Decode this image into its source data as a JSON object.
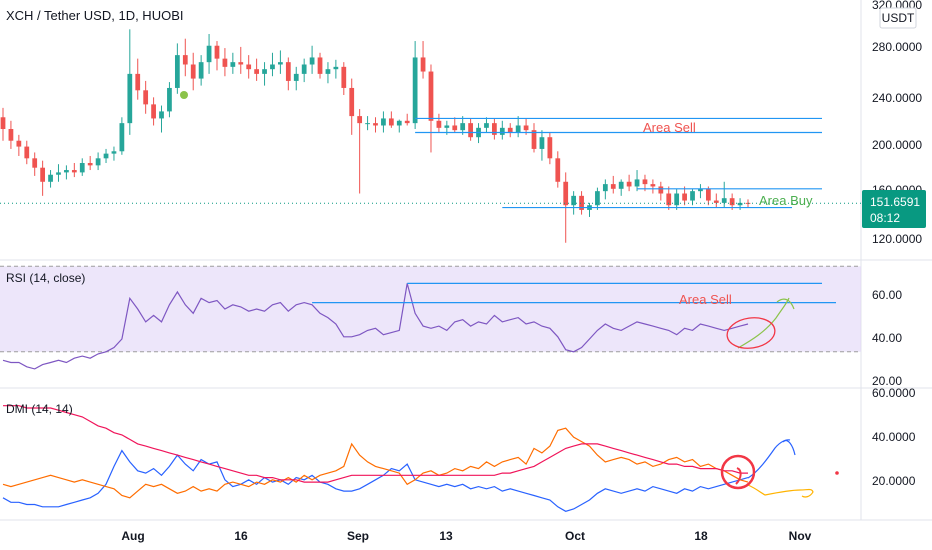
{
  "header": {
    "title": "XCH / Tether USD, 1D, HUOBI",
    "currency": "USDT"
  },
  "price_badge": {
    "price": "151.6591",
    "countdown": "08:12"
  },
  "panes": {
    "price": {
      "y_ticks": [
        "320.0000",
        "280.0000",
        "240.0000",
        "200.0000",
        "160.0000",
        "120.0000"
      ]
    },
    "rsi": {
      "label": "RSI (14, close)",
      "y_ticks": [
        "60.00",
        "40.00",
        "20.00"
      ]
    },
    "dmi": {
      "label": "DMI (14, 14)",
      "y_ticks": [
        "60.0000",
        "40.0000",
        "20.0000"
      ]
    }
  },
  "x_ticks": [
    "Aug",
    "16",
    "Sep",
    "13",
    "Oct",
    "18",
    "Nov"
  ],
  "annotations": {
    "price_sell": "Area Sell",
    "price_buy": "Area Buy",
    "rsi_sell": "Area Sell"
  },
  "colors": {
    "up": "#26a69a",
    "down": "#ef5350",
    "rsi_line": "#7e57c2",
    "rsi_band": "#e1d5f7",
    "di_plus": "#2962ff",
    "di_minus": "#ff6d00",
    "adx": "#f0145a",
    "level_line": "#2196f3",
    "badge": "#089981"
  },
  "chart_data": [
    {
      "type": "candlestick",
      "title": "XCH / Tether USD, 1D, HUOBI",
      "ylim": [
        105,
        325
      ],
      "x_start": "Jul 21",
      "ohlc": [
        [
          225,
          233,
          205,
          215
        ],
        [
          215,
          222,
          198,
          205
        ],
        [
          205,
          210,
          192,
          200
        ],
        [
          200,
          205,
          185,
          190
        ],
        [
          190,
          195,
          175,
          182
        ],
        [
          182,
          188,
          158,
          170
        ],
        [
          170,
          180,
          165,
          176
        ],
        [
          176,
          185,
          170,
          178
        ],
        [
          178,
          184,
          172,
          180
        ],
        [
          180,
          186,
          174,
          178
        ],
        [
          178,
          190,
          175,
          186
        ],
        [
          186,
          192,
          180,
          184
        ],
        [
          184,
          195,
          180,
          190
        ],
        [
          190,
          198,
          186,
          194
        ],
        [
          194,
          200,
          188,
          196
        ],
        [
          196,
          225,
          193,
          220
        ],
        [
          220,
          300,
          210,
          262
        ],
        [
          262,
          275,
          240,
          248
        ],
        [
          248,
          256,
          228,
          236
        ],
        [
          236,
          242,
          218,
          224
        ],
        [
          224,
          235,
          212,
          230
        ],
        [
          230,
          255,
          225,
          250
        ],
        [
          250,
          288,
          245,
          278
        ],
        [
          278,
          292,
          260,
          270
        ],
        [
          270,
          280,
          248,
          258
        ],
        [
          258,
          278,
          252,
          272
        ],
        [
          272,
          296,
          262,
          286
        ],
        [
          286,
          290,
          265,
          275
        ],
        [
          275,
          284,
          260,
          268
        ],
        [
          268,
          280,
          262,
          272
        ],
        [
          272,
          285,
          262,
          270
        ],
        [
          270,
          278,
          258,
          266
        ],
        [
          266,
          275,
          256,
          262
        ],
        [
          262,
          272,
          252,
          266
        ],
        [
          266,
          280,
          260,
          270
        ],
        [
          270,
          282,
          262,
          272
        ],
        [
          272,
          276,
          248,
          256
        ],
        [
          256,
          268,
          248,
          262
        ],
        [
          262,
          275,
          255,
          270
        ],
        [
          270,
          286,
          262,
          276
        ],
        [
          276,
          280,
          258,
          262
        ],
        [
          262,
          272,
          254,
          266
        ],
        [
          266,
          274,
          258,
          268
        ],
        [
          268,
          272,
          244,
          250
        ],
        [
          250,
          258,
          210,
          226
        ],
        [
          226,
          232,
          160,
          220
        ],
        [
          220,
          226,
          214,
          220
        ],
        [
          220,
          225,
          212,
          218
        ],
        [
          218,
          230,
          212,
          224
        ],
        [
          224,
          230,
          216,
          218
        ],
        [
          218,
          223,
          212,
          222
        ],
        [
          222,
          228,
          218,
          220
        ],
        [
          220,
          290,
          215,
          276
        ],
        [
          276,
          290,
          258,
          264
        ],
        [
          264,
          270,
          195,
          222
        ],
        [
          222,
          228,
          212,
          216
        ],
        [
          216,
          222,
          210,
          218
        ],
        [
          218,
          225,
          212,
          214
        ],
        [
          214,
          226,
          210,
          220
        ],
        [
          220,
          224,
          205,
          208
        ],
        [
          208,
          220,
          203,
          216
        ],
        [
          216,
          225,
          212,
          220
        ],
        [
          220,
          224,
          206,
          210
        ],
        [
          210,
          222,
          206,
          216
        ],
        [
          216,
          220,
          208,
          212
        ],
        [
          212,
          226,
          208,
          218
        ],
        [
          218,
          224,
          210,
          214
        ],
        [
          214,
          220,
          195,
          198
        ],
        [
          198,
          214,
          188,
          208
        ],
        [
          208,
          212,
          185,
          190
        ],
        [
          190,
          196,
          165,
          170
        ],
        [
          170,
          178,
          118,
          150
        ],
        [
          150,
          162,
          142,
          158
        ],
        [
          158,
          162,
          142,
          146
        ],
        [
          146,
          152,
          140,
          150
        ],
        [
          150,
          165,
          146,
          162
        ],
        [
          162,
          172,
          155,
          168
        ],
        [
          168,
          175,
          160,
          164
        ],
        [
          164,
          172,
          158,
          170
        ],
        [
          170,
          176,
          162,
          166
        ],
        [
          166,
          180,
          162,
          172
        ],
        [
          172,
          176,
          162,
          168
        ],
        [
          168,
          172,
          160,
          166
        ],
        [
          166,
          170,
          154,
          160
        ],
        [
          160,
          166,
          146,
          150
        ],
        [
          150,
          164,
          146,
          160
        ],
        [
          160,
          166,
          150,
          154
        ],
        [
          154,
          164,
          150,
          162
        ],
        [
          162,
          168,
          156,
          164
        ],
        [
          164,
          166,
          150,
          154
        ],
        [
          154,
          160,
          148,
          152
        ],
        [
          152,
          170,
          148,
          156
        ],
        [
          156,
          160,
          146,
          150
        ],
        [
          150,
          156,
          146,
          152
        ],
        [
          152,
          155,
          148,
          151.66
        ]
      ],
      "levels": [
        224,
        212,
        164,
        148
      ],
      "last_close": 151.6591
    },
    {
      "type": "line",
      "title": "RSI (14, close)",
      "ylim": [
        14,
        72
      ],
      "band": [
        30,
        70
      ],
      "values": [
        26,
        25,
        25,
        23,
        22,
        24,
        25,
        26,
        25,
        27,
        28,
        27,
        29,
        30,
        32,
        36,
        55,
        50,
        44,
        47,
        44,
        52,
        58,
        52,
        48,
        55,
        53,
        54,
        50,
        52,
        51,
        49,
        50,
        49,
        52,
        53,
        49,
        52,
        53,
        52,
        48,
        46,
        43,
        37,
        37,
        38,
        40,
        41,
        38,
        39,
        40,
        62,
        48,
        42,
        41,
        42,
        40,
        44,
        45,
        42,
        44,
        43,
        47,
        44,
        45,
        46,
        43,
        44,
        42,
        41,
        37,
        31,
        30,
        32,
        36,
        40,
        43,
        41,
        40,
        42,
        44,
        43,
        42,
        41,
        40,
        38,
        41,
        40,
        43,
        42,
        41,
        40,
        41,
        42,
        43
      ],
      "levels": [
        62,
        53
      ]
    },
    {
      "type": "line",
      "title": "DMI (14, 14)",
      "ylim": [
        5,
        62
      ],
      "series": [
        {
          "name": "+DI",
          "values": [
            14,
            12,
            12,
            11,
            11,
            10,
            10,
            10,
            11,
            12,
            13,
            14,
            16,
            20,
            28,
            35,
            30,
            26,
            25,
            27,
            24,
            28,
            33,
            29,
            26,
            31,
            29,
            30,
            22,
            19,
            20,
            22,
            20,
            23,
            21,
            22,
            20,
            23,
            22,
            24,
            21,
            20,
            18,
            17,
            17,
            18,
            20,
            22,
            24,
            27,
            26,
            29,
            22,
            21,
            20,
            19,
            20,
            19,
            20,
            18,
            19,
            18,
            19,
            17,
            18,
            17,
            16,
            15,
            14,
            13,
            10,
            8,
            9,
            11,
            13,
            16,
            18,
            17,
            16,
            17,
            18,
            17,
            19,
            18,
            17,
            16,
            18,
            17,
            19,
            18,
            19,
            20,
            21,
            22,
            23
          ]
        },
        {
          "name": "-DI",
          "values": [
            20,
            19,
            20,
            21,
            22,
            23,
            24,
            23,
            22,
            21,
            22,
            21,
            20,
            19,
            18,
            15,
            14,
            17,
            20,
            19,
            20,
            18,
            16,
            17,
            19,
            17,
            18,
            17,
            20,
            21,
            20,
            19,
            21,
            20,
            22,
            21,
            23,
            21,
            24,
            22,
            24,
            25,
            26,
            28,
            38,
            33,
            30,
            28,
            27,
            26,
            25,
            20,
            22,
            25,
            26,
            24,
            25,
            27,
            26,
            28,
            27,
            30,
            28,
            30,
            31,
            32,
            29,
            36,
            34,
            37,
            44,
            45,
            41,
            39,
            37,
            33,
            30,
            31,
            32,
            31,
            29,
            30,
            28,
            29,
            31,
            32,
            30,
            31,
            28,
            29,
            27,
            26,
            24,
            22,
            21
          ]
        },
        {
          "name": "ADX",
          "values": [
            55,
            55,
            55,
            54,
            54,
            54,
            54,
            53,
            52,
            51,
            50,
            48,
            46,
            45,
            43,
            42,
            40,
            38,
            37,
            36,
            35,
            34,
            33,
            32,
            31,
            30,
            29,
            28,
            27,
            26,
            25,
            24,
            24,
            23,
            23,
            22,
            22,
            22,
            21,
            21,
            21,
            21,
            22,
            23,
            24,
            24,
            24,
            24,
            24,
            24,
            24,
            24,
            24,
            24,
            24,
            24,
            24,
            24,
            24,
            24,
            24,
            24,
            24,
            25,
            25,
            26,
            27,
            28,
            30,
            32,
            34,
            36,
            37,
            38,
            38,
            38,
            37,
            36,
            35,
            34,
            33,
            32,
            31,
            30,
            29,
            29,
            28,
            28,
            27,
            27,
            27,
            26,
            26,
            25,
            25
          ]
        }
      ]
    }
  ]
}
